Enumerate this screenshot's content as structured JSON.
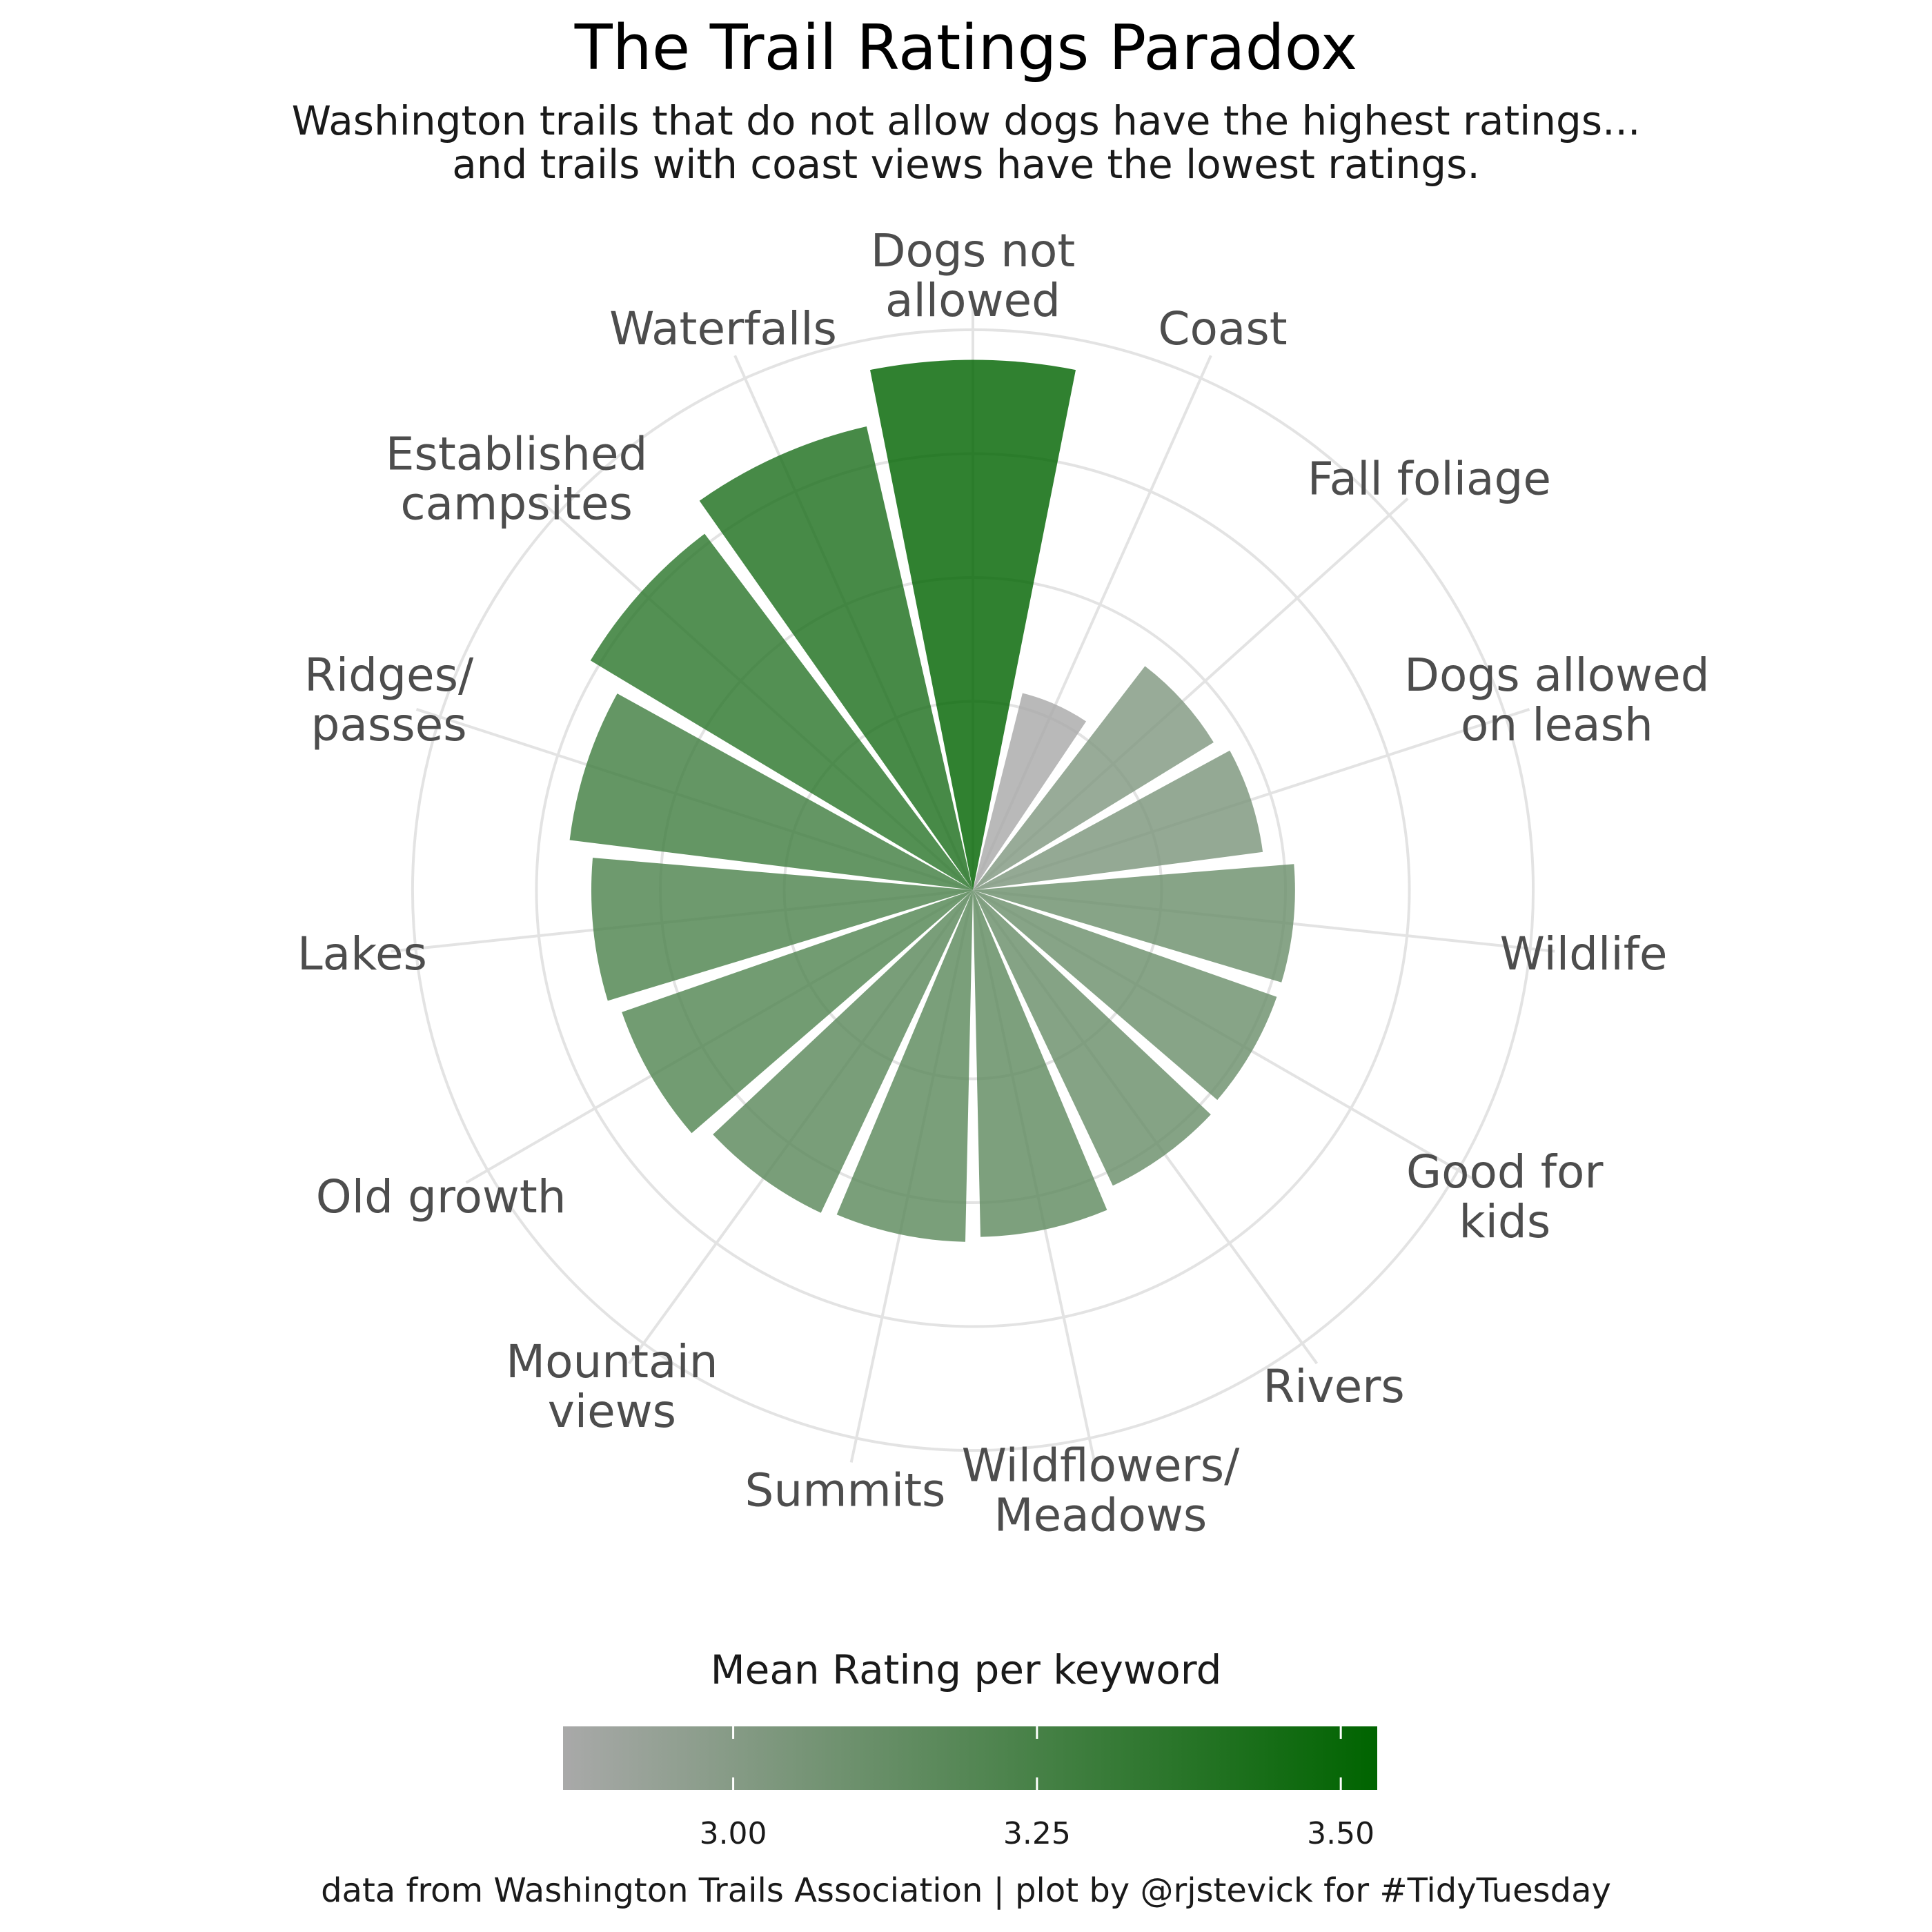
{
  "title": "The Trail Ratings Paradox",
  "subtitle_lines": [
    "Washington trails that do not allow dogs have the highest ratings...",
    "and trails with coast views have the lowest ratings."
  ],
  "caption": "data from Washington Trails Association | plot by @rjstevick for #TidyTuesday",
  "colors": {
    "low": "#a9a9a9",
    "high": "#006400",
    "grid": "#e3e3e3",
    "label": "#4d4d4d"
  },
  "legend": {
    "title": "Mean Rating per keyword",
    "min": 2.86,
    "max": 3.53,
    "ticks": [
      3.0,
      3.25,
      3.5
    ],
    "tick_labels": [
      "3.00",
      "3.25",
      "3.50"
    ]
  },
  "chart_data": {
    "type": "bar",
    "coord": "polar",
    "categories": [
      "Dogs not allowed",
      "Coast",
      "Fall foliage",
      "Dogs allowed on leash",
      "Wildlife",
      "Good for kids",
      "Rivers",
      "Wildflowers/ Meadows",
      "Summits",
      "Mountain views",
      "Old growth",
      "Lakes",
      "Ridges/ passes",
      "Established campsites",
      "Waterfalls"
    ],
    "category_labels": [
      [
        "Dogs not",
        "allowed"
      ],
      [
        "Coast"
      ],
      [
        "Fall foliage"
      ],
      [
        "Dogs allowed",
        "on leash"
      ],
      [
        "Wildlife"
      ],
      [
        "Good for",
        "kids"
      ],
      [
        "Rivers"
      ],
      [
        "Wildflowers/",
        "Meadows"
      ],
      [
        "Summits"
      ],
      [
        "Mountain",
        "views"
      ],
      [
        "Old growth"
      ],
      [
        "Lakes"
      ],
      [
        "Ridges/",
        "passes"
      ],
      [
        "Established",
        "campsites"
      ],
      [
        "Waterfalls"
      ]
    ],
    "values": [
      3.52,
      2.86,
      3.02,
      3.04,
      3.1,
      3.1,
      3.11,
      3.15,
      3.16,
      3.17,
      3.2,
      3.22,
      3.27,
      3.35,
      3.41
    ],
    "series": [
      {
        "name": "Mean Rating per keyword",
        "values": [
          3.52,
          2.86,
          3.02,
          3.04,
          3.1,
          3.1,
          3.11,
          3.15,
          3.16,
          3.17,
          3.2,
          3.22,
          3.27,
          3.35,
          3.41
        ]
      }
    ],
    "grid": true,
    "legend_position": "bottom"
  }
}
